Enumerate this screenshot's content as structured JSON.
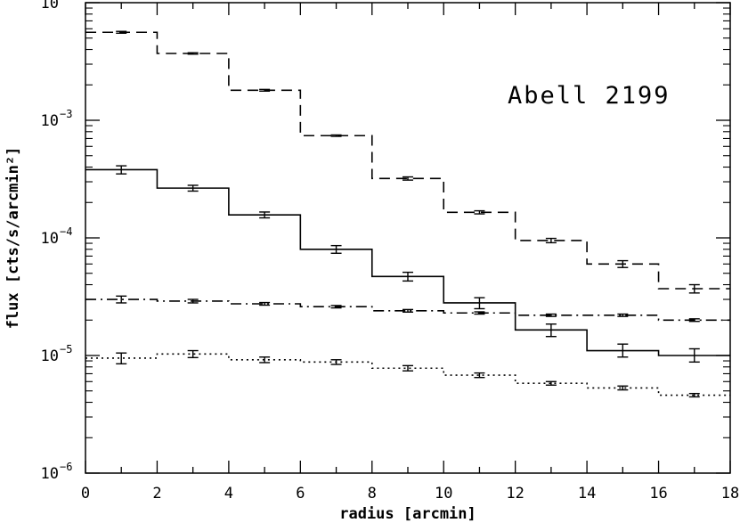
{
  "chart_data": {
    "type": "line",
    "annotation": "Abell 2199",
    "xlabel": "radius [arcmin]",
    "ylabel": "flux [cts/s/arcmin²]",
    "xlim": [
      0,
      18
    ],
    "ylim": [
      1e-06,
      0.01
    ],
    "yscale": "log",
    "xticks": [
      0,
      2,
      4,
      6,
      8,
      10,
      12,
      14,
      16,
      18
    ],
    "yticks": [
      {
        "value": 1e-06,
        "mantissa": "10",
        "exponent": "−6"
      },
      {
        "value": 1e-05,
        "mantissa": "10",
        "exponent": "−5"
      },
      {
        "value": 0.0001,
        "mantissa": "10",
        "exponent": "−4"
      },
      {
        "value": 0.001,
        "mantissa": "10",
        "exponent": "−3"
      },
      {
        "value": 0.01,
        "mantissa": "10",
        "exponent": "−2"
      }
    ],
    "grid": false,
    "bins": [
      [
        0,
        2
      ],
      [
        2,
        4
      ],
      [
        4,
        6
      ],
      [
        6,
        8
      ],
      [
        8,
        10
      ],
      [
        10,
        12
      ],
      [
        12,
        14
      ],
      [
        14,
        16
      ],
      [
        16,
        18
      ]
    ],
    "x": [
      1,
      3,
      5,
      7,
      9,
      11,
      13,
      15,
      17
    ],
    "series": [
      {
        "style": "dashed",
        "values": [
          0.0056,
          0.0037,
          0.0018,
          0.00074,
          0.00032,
          0.000165,
          9.5e-05,
          6e-05,
          3.7e-05
        ],
        "err_low": [
          0.0055,
          0.00365,
          0.00177,
          0.00073,
          0.00031,
          0.00016,
          9.1e-05,
          5.6e-05,
          3.4e-05
        ],
        "err_high": [
          0.0057,
          0.00375,
          0.00183,
          0.00075,
          0.00033,
          0.00017,
          9.9e-05,
          6.4e-05,
          4e-05
        ]
      },
      {
        "style": "solid",
        "values": [
          0.00038,
          0.000265,
          0.000157,
          8e-05,
          4.7e-05,
          2.8e-05,
          1.65e-05,
          1.1e-05,
          1e-05
        ],
        "err_low": [
          0.00035,
          0.00025,
          0.000148,
          7.4e-05,
          4.3e-05,
          2.5e-05,
          1.45e-05,
          9.7e-06,
          8.8e-06
        ],
        "err_high": [
          0.00041,
          0.00028,
          0.000166,
          8.6e-05,
          5.1e-05,
          3.1e-05,
          1.85e-05,
          1.25e-05,
          1.14e-05
        ]
      },
      {
        "style": "dash-dot",
        "values": [
          3e-05,
          2.9e-05,
          2.75e-05,
          2.6e-05,
          2.4e-05,
          2.3e-05,
          2.2e-05,
          2.2e-05,
          2e-05
        ],
        "err_low": [
          2.8e-05,
          2.8e-05,
          2.68e-05,
          2.54e-05,
          2.34e-05,
          2.25e-05,
          2.15e-05,
          2.15e-05,
          1.95e-05
        ],
        "err_high": [
          3.2e-05,
          3e-05,
          2.82e-05,
          2.66e-05,
          2.46e-05,
          2.35e-05,
          2.25e-05,
          2.25e-05,
          2.05e-05
        ]
      },
      {
        "style": "dotted",
        "values": [
          9.5e-06,
          1.03e-05,
          9.2e-06,
          8.8e-06,
          7.8e-06,
          6.8e-06,
          5.8e-06,
          5.3e-06,
          4.6e-06
        ],
        "err_low": [
          8.5e-06,
          9.6e-06,
          8.7e-06,
          8.4e-06,
          7.4e-06,
          6.5e-06,
          5.6e-06,
          5.1e-06,
          4.45e-06
        ],
        "err_high": [
          1.05e-05,
          1.1e-05,
          9.7e-06,
          9.2e-06,
          8.2e-06,
          7.1e-06,
          6e-06,
          5.5e-06,
          4.75e-06
        ]
      }
    ]
  }
}
